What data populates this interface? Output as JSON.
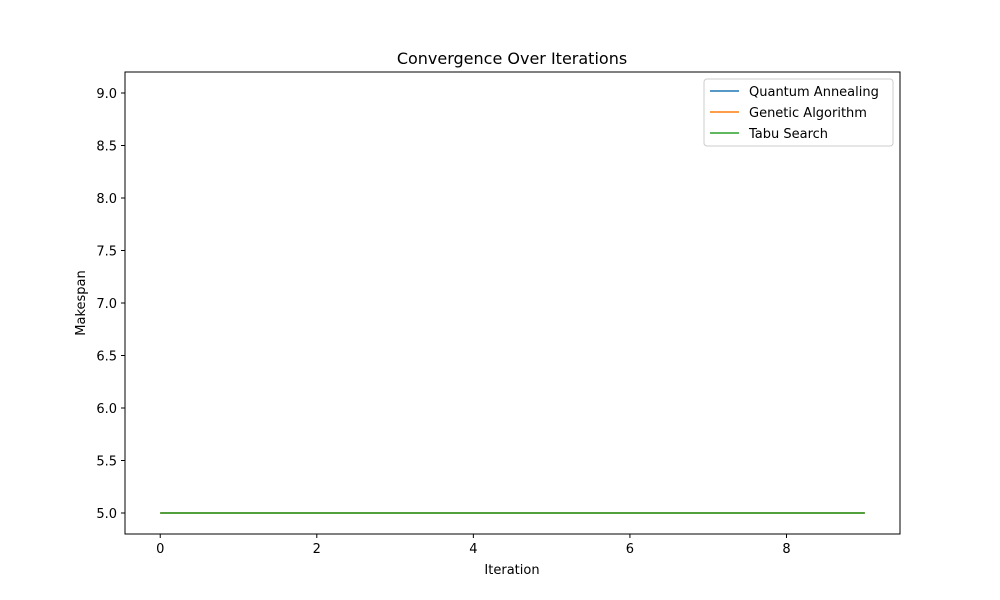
{
  "chart_data": {
    "type": "line",
    "title": "Convergence Over Iterations",
    "xlabel": "Iteration",
    "ylabel": "Makespan",
    "x": [
      0,
      1,
      2,
      3,
      4,
      5,
      6,
      7,
      8,
      9
    ],
    "xlim": [
      -0.45,
      9.45
    ],
    "ylim": [
      4.8,
      9.2
    ],
    "xticks": [
      0,
      2,
      4,
      6,
      8
    ],
    "yticks": [
      5.0,
      5.5,
      6.0,
      6.5,
      7.0,
      7.5,
      8.0,
      8.5,
      9.0
    ],
    "grid": false,
    "legend_position": "top-right",
    "series": [
      {
        "name": "Quantum Annealing",
        "color": "#1f77b4",
        "values": [
          5,
          5,
          5,
          5,
          5,
          5,
          5,
          5,
          5,
          5
        ]
      },
      {
        "name": "Genetic Algorithm",
        "color": "#ff7f0e",
        "values": [
          5,
          5,
          5,
          5,
          5,
          5,
          5,
          5,
          5,
          5
        ]
      },
      {
        "name": "Tabu Search",
        "color": "#2ca02c",
        "values": [
          5,
          5,
          5,
          5,
          5,
          5,
          5,
          5,
          5,
          5
        ]
      }
    ]
  }
}
